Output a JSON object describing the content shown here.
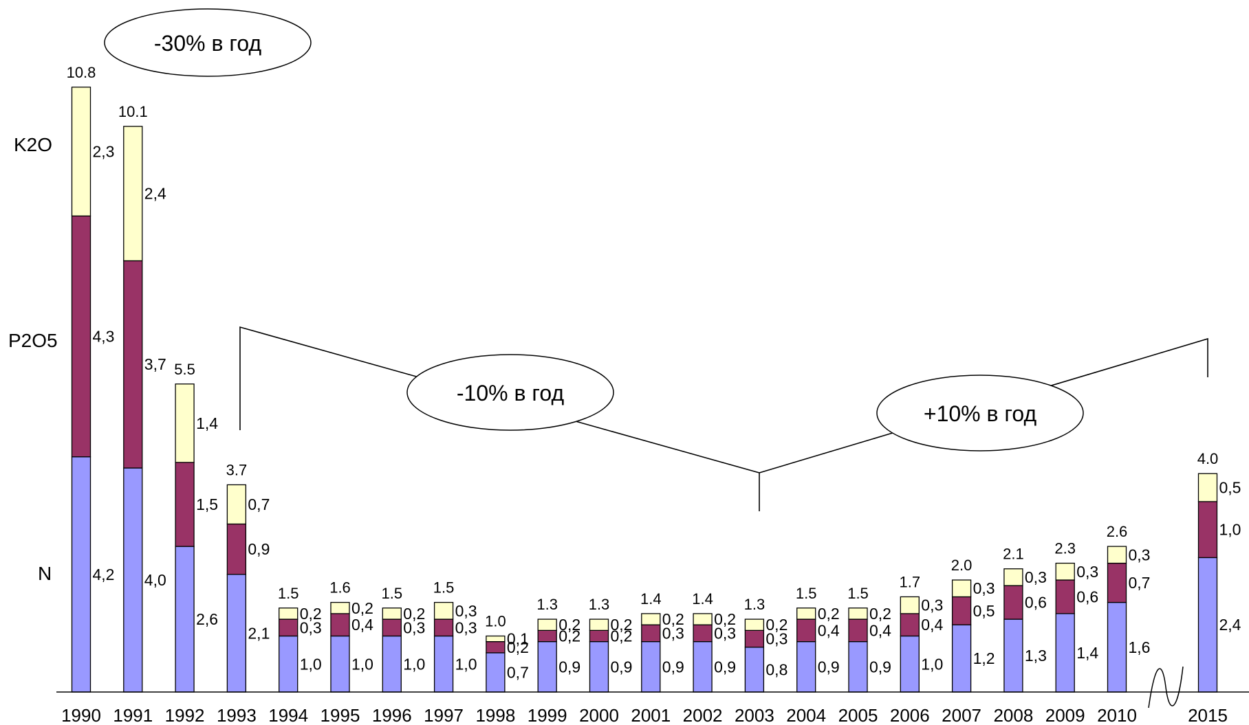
{
  "chart_data": {
    "type": "bar",
    "stacked": true,
    "title": "",
    "xlabel": "",
    "ylabel": "",
    "ylim": [
      0,
      11
    ],
    "categories": [
      "1990",
      "1991",
      "1992",
      "1993",
      "1994",
      "1995",
      "1996",
      "1997",
      "1998",
      "1999",
      "2000",
      "2001",
      "2002",
      "2003",
      "2004",
      "2005",
      "2006",
      "2007",
      "2008",
      "2009",
      "2010",
      "2015"
    ],
    "axis_break_between": [
      "2010",
      "2015"
    ],
    "series": [
      {
        "name": "N",
        "color": "#9999ff",
        "values": [
          4.2,
          4.0,
          2.6,
          2.1,
          1.0,
          1.0,
          1.0,
          1.0,
          0.7,
          0.9,
          0.9,
          0.9,
          0.9,
          0.8,
          0.9,
          0.9,
          1.0,
          1.2,
          1.3,
          1.4,
          1.6,
          2.4
        ],
        "labels": [
          "4,2",
          "4,0",
          "2,6",
          "2,1",
          "1,0",
          "1,0",
          "1,0",
          "1,0",
          "0,7",
          "0,9",
          "0,9",
          "0,9",
          "0,9",
          "0,8",
          "0,9",
          "0,9",
          "1,0",
          "1,2",
          "1,3",
          "1,4",
          "1,6",
          "2,4"
        ]
      },
      {
        "name": "P2O5",
        "color": "#993366",
        "values": [
          4.3,
          3.7,
          1.5,
          0.9,
          0.3,
          0.4,
          0.3,
          0.3,
          0.2,
          0.2,
          0.2,
          0.3,
          0.3,
          0.3,
          0.4,
          0.4,
          0.4,
          0.5,
          0.6,
          0.6,
          0.7,
          1.0
        ],
        "labels": [
          "4,3",
          "3,7",
          "1,5",
          "0,9",
          "0,3",
          "0,4",
          "0,3",
          "0,3",
          "0,2",
          "0,2",
          "0,2",
          "0,3",
          "0,3",
          "0,3",
          "0,4",
          "0,4",
          "0,4",
          "0,5",
          "0,6",
          "0,6",
          "0,7",
          "1,0"
        ]
      },
      {
        "name": "K2O",
        "color": "#ffffcc",
        "values": [
          2.3,
          2.4,
          1.4,
          0.7,
          0.2,
          0.2,
          0.2,
          0.3,
          0.1,
          0.2,
          0.2,
          0.2,
          0.2,
          0.2,
          0.2,
          0.2,
          0.3,
          0.3,
          0.3,
          0.3,
          0.3,
          0.5
        ],
        "labels": [
          "2,3",
          "2,4",
          "1,4",
          "0,7",
          "0,2",
          "0,2",
          "0,2",
          "0,3",
          "0,1",
          "0,2",
          "0,2",
          "0,2",
          "0,2",
          "0,2",
          "0,2",
          "0,2",
          "0,3",
          "0,3",
          "0,3",
          "0,3",
          "0,3",
          "0,5"
        ]
      }
    ],
    "totals": [
      "10.8",
      "10.1",
      "5.5",
      "3.7",
      "1.5",
      "1.6",
      "1.5",
      "1.5",
      "1.0",
      "1.3",
      "1.3",
      "1.4",
      "1.4",
      "1.3",
      "1.5",
      "1.5",
      "1.7",
      "2.0",
      "2.1",
      "2.3",
      "2.6",
      "4.0"
    ],
    "annotations": [
      "-30% в год",
      "-10% в год",
      "+10% в год"
    ]
  }
}
